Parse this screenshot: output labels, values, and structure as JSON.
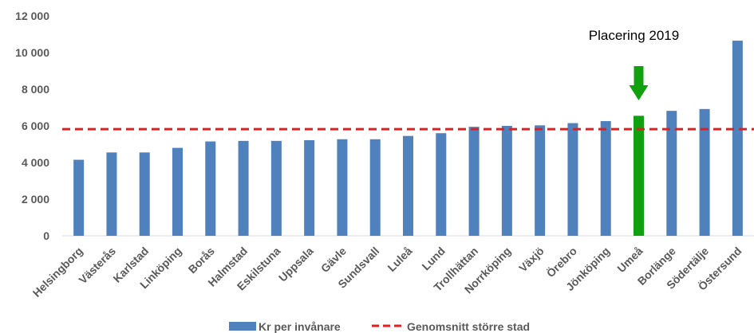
{
  "chart_data": {
    "type": "bar",
    "title": "",
    "xlabel": "",
    "ylabel": "",
    "ylim": [
      0,
      12000
    ],
    "yticks": [
      0,
      2000,
      4000,
      6000,
      8000,
      10000,
      12000
    ],
    "ytick_labels": [
      "0",
      "2 000",
      "4 000",
      "6 000",
      "8 000",
      "10 000",
      "12 000"
    ],
    "grid": false,
    "categories": [
      "Helsingborg",
      "Västerås",
      "Karlstad",
      "Linköping",
      "Borås",
      "Halmstad",
      "Eskilstuna",
      "Uppsala",
      "Gävle",
      "Sundsvall",
      "Luleå",
      "Lund",
      "Trollhättan",
      "Norrköping",
      "Växjö",
      "Örebro",
      "Jönköping",
      "Umeå",
      "Borlänge",
      "Södertälje",
      "Östersund"
    ],
    "series": [
      {
        "name": "Kr per invånare",
        "color": "#4f81bd",
        "values": [
          4150,
          4550,
          4550,
          4800,
          5150,
          5180,
          5180,
          5220,
          5270,
          5270,
          5450,
          5600,
          5950,
          6000,
          6030,
          6150,
          6260,
          6550,
          6820,
          6920,
          10650
        ]
      }
    ],
    "highlight": {
      "category": "Umeå",
      "color": "#10a010"
    },
    "reference_line": {
      "name": "Genomsnitt större stad",
      "value": 5820,
      "color": "#e02020",
      "style": "dashed"
    },
    "annotation": {
      "text": "Placering 2019",
      "arrow_color": "#10a010",
      "points_to": "Umeå"
    },
    "legend": {
      "position": "bottom"
    }
  }
}
